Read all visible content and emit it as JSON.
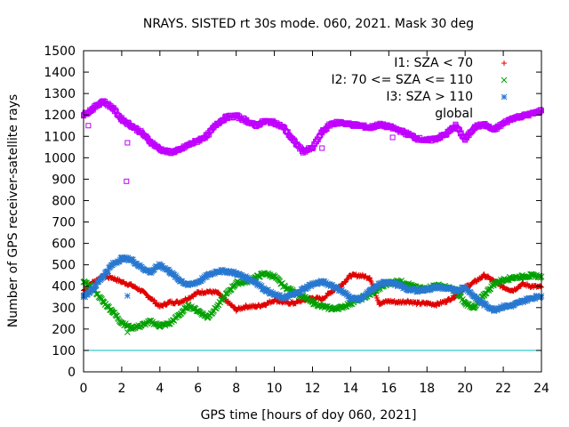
{
  "chart_data": {
    "type": "scatter",
    "title": "NRAYS. SISTED rt 30s mode. 060, 2021. Mask 30 deg",
    "xlabel": "GPS time [hours of doy 060, 2021]",
    "ylabel": "Number of GPS receiver-satellite rays",
    "xlim": [
      0,
      24
    ],
    "ylim": [
      0,
      1500
    ],
    "xticks": [
      "0",
      "2",
      "4",
      "6",
      "8",
      "10",
      "12",
      "14",
      "16",
      "18",
      "20",
      "22",
      "24"
    ],
    "yticks": [
      "0",
      "100",
      "200",
      "300",
      "400",
      "500",
      "600",
      "700",
      "800",
      "900",
      "1000",
      "1100",
      "1200",
      "1300",
      "1400",
      "1500"
    ],
    "legend_position": "top-right",
    "reference_line": {
      "y": 100,
      "color": "#00c0c0"
    },
    "series": [
      {
        "name": "I1: SZA < 70",
        "marker": "+",
        "color": "#e00000",
        "x": [
          0,
          0.5,
          1,
          1.5,
          2,
          2.5,
          3,
          3.5,
          4,
          4.5,
          5,
          5.5,
          6,
          6.5,
          7,
          7.5,
          8,
          8.5,
          9,
          9.5,
          10,
          10.5,
          11,
          11.5,
          12,
          12.5,
          13,
          13.5,
          14,
          14.5,
          15,
          15.5,
          16,
          16.5,
          17,
          17.5,
          18,
          18.5,
          19,
          19.5,
          20,
          20.5,
          21,
          21.5,
          22,
          22.5,
          23,
          23.5,
          24
        ],
        "y": [
          380,
          420,
          445,
          440,
          420,
          405,
          380,
          345,
          305,
          325,
          325,
          345,
          370,
          375,
          370,
          330,
          290,
          305,
          305,
          315,
          335,
          325,
          320,
          335,
          345,
          340,
          375,
          405,
          450,
          450,
          440,
          320,
          330,
          325,
          330,
          320,
          320,
          315,
          330,
          355,
          395,
          420,
          450,
          425,
          395,
          380,
          410,
          400,
          395
        ]
      },
      {
        "name": "I2: 70 <= SZA <= 110",
        "marker": "x",
        "color": "#00a000",
        "x": [
          0,
          0.5,
          1,
          1.5,
          2,
          2.5,
          3,
          3.5,
          4,
          4.5,
          5,
          5.5,
          6,
          6.5,
          7,
          7.5,
          8,
          8.5,
          9,
          9.5,
          10,
          10.5,
          11,
          11.5,
          12,
          12.5,
          13,
          13.5,
          14,
          14.5,
          15,
          15.5,
          16,
          16.5,
          17,
          17.5,
          18,
          18.5,
          19,
          19.5,
          20,
          20.5,
          21,
          21.5,
          22,
          22.5,
          23,
          23.5,
          24
        ],
        "y": [
          420,
          390,
          330,
          285,
          230,
          205,
          215,
          235,
          215,
          225,
          265,
          310,
          285,
          255,
          305,
          365,
          415,
          420,
          440,
          460,
          445,
          400,
          375,
          350,
          325,
          305,
          295,
          300,
          320,
          340,
          360,
          390,
          415,
          425,
          410,
          390,
          390,
          405,
          395,
          380,
          320,
          300,
          360,
          410,
          430,
          440,
          445,
          450,
          445
        ]
      },
      {
        "name": "I3: SZA > 110",
        "marker": "*",
        "color": "#2878d0",
        "x": [
          0,
          0.5,
          1,
          1.5,
          2,
          2.5,
          3,
          3.5,
          4,
          4.5,
          5,
          5.5,
          6,
          6.5,
          7,
          7.5,
          8,
          8.5,
          9,
          9.5,
          10,
          10.5,
          11,
          11.5,
          12,
          12.5,
          13,
          13.5,
          14,
          14.5,
          15,
          15.5,
          16,
          16.5,
          17,
          17.5,
          18,
          18.5,
          19,
          19.5,
          20,
          20.5,
          21,
          21.5,
          22,
          22.5,
          23,
          23.5,
          24
        ],
        "y": [
          350,
          390,
          445,
          500,
          530,
          525,
          490,
          465,
          500,
          470,
          430,
          405,
          420,
          450,
          470,
          470,
          460,
          440,
          420,
          385,
          360,
          345,
          360,
          385,
          410,
          420,
          405,
          380,
          345,
          340,
          375,
          410,
          420,
          405,
          385,
          380,
          385,
          395,
          390,
          380,
          395,
          350,
          315,
          290,
          305,
          310,
          330,
          345,
          355
        ]
      },
      {
        "name": "global",
        "marker": "square",
        "color": "#c000ff",
        "x": [
          0,
          0.5,
          1,
          1.5,
          2,
          2.5,
          3,
          3.5,
          4,
          4.5,
          5,
          5.5,
          6,
          6.5,
          7,
          7.5,
          8,
          8.5,
          9,
          9.5,
          10,
          10.5,
          11,
          11.5,
          12,
          12.5,
          13,
          13.5,
          14,
          14.5,
          15,
          15.5,
          16,
          16.5,
          17,
          17.5,
          18,
          18.5,
          19,
          19.5,
          20,
          20.5,
          21,
          21.5,
          22,
          22.5,
          23,
          23.5,
          24
        ],
        "y": [
          1200,
          1230,
          1265,
          1235,
          1180,
          1150,
          1120,
          1075,
          1040,
          1025,
          1035,
          1060,
          1080,
          1105,
          1160,
          1190,
          1195,
          1175,
          1150,
          1170,
          1165,
          1140,
          1080,
          1030,
          1045,
          1120,
          1160,
          1165,
          1155,
          1150,
          1140,
          1155,
          1145,
          1130,
          1110,
          1090,
          1080,
          1090,
          1110,
          1150,
          1085,
          1145,
          1155,
          1130,
          1160,
          1185,
          1195,
          1205,
          1220
        ]
      }
    ],
    "outliers": {
      "global": {
        "x": [
          0.25,
          2.25,
          2.3,
          12.5,
          16.2
        ],
        "y": [
          1150,
          890,
          1070,
          1045,
          1095
        ]
      },
      "I3: SZA > 110": {
        "x": [
          2.3
        ],
        "y": [
          355
        ]
      },
      "I2: 70 <= SZA <= 110": {
        "x": [
          2.3
        ],
        "y": [
          185
        ]
      }
    }
  }
}
